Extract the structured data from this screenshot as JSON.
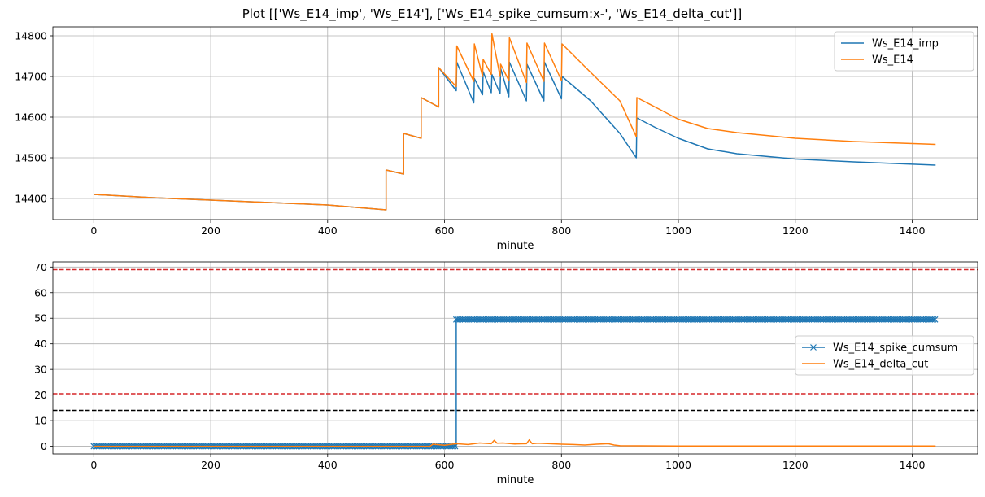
{
  "title": "Plot [['Ws_E14_imp', 'Ws_E14'], ['Ws_E14_spike_cumsum:x-', 'Ws_E14_delta_cut']]",
  "chart_data": [
    {
      "type": "line",
      "xlabel": "minute",
      "ylabel": "",
      "xlim": [
        -70,
        1512
      ],
      "ylim": [
        14348,
        14822
      ],
      "xticks": [
        0,
        200,
        400,
        600,
        800,
        1000,
        1200,
        1400
      ],
      "yticks": [
        14400,
        14500,
        14600,
        14700,
        14800
      ],
      "grid": true,
      "legend": "top-right",
      "series": [
        {
          "name": "Ws_E14_imp",
          "color": "#1f77b4",
          "x": [
            0,
            100,
            200,
            300,
            400,
            500,
            500,
            530,
            530,
            560,
            560,
            590,
            590,
            620,
            621,
            650,
            651,
            665,
            666,
            680,
            681,
            695,
            696,
            710,
            711,
            740,
            741,
            770,
            771,
            800,
            801,
            850,
            900,
            928,
            929,
            960,
            1000,
            1050,
            1100,
            1200,
            1300,
            1440
          ],
          "y": [
            14410,
            14402,
            14396,
            14390,
            14384,
            14372,
            14470,
            14460,
            14560,
            14548,
            14648,
            14625,
            14722,
            14665,
            14735,
            14635,
            14695,
            14655,
            14712,
            14660,
            14705,
            14658,
            14720,
            14650,
            14735,
            14640,
            14730,
            14640,
            14735,
            14645,
            14700,
            14640,
            14560,
            14500,
            14598,
            14575,
            14548,
            14522,
            14510,
            14497,
            14490,
            14482
          ]
        },
        {
          "name": "Ws_E14",
          "color": "#ff7f0e",
          "x": [
            0,
            100,
            200,
            300,
            400,
            500,
            500,
            530,
            530,
            560,
            560,
            590,
            590,
            620,
            621,
            650,
            651,
            665,
            666,
            680,
            681,
            695,
            696,
            710,
            711,
            740,
            741,
            770,
            771,
            800,
            801,
            850,
            900,
            928,
            929,
            960,
            1000,
            1050,
            1100,
            1200,
            1300,
            1440
          ],
          "y": [
            14410,
            14402,
            14396,
            14390,
            14384,
            14372,
            14470,
            14460,
            14560,
            14548,
            14648,
            14625,
            14722,
            14675,
            14775,
            14688,
            14780,
            14700,
            14742,
            14705,
            14805,
            14700,
            14730,
            14690,
            14795,
            14685,
            14782,
            14688,
            14782,
            14690,
            14780,
            14710,
            14640,
            14552,
            14648,
            14625,
            14595,
            14572,
            14562,
            14548,
            14540,
            14533
          ]
        }
      ]
    },
    {
      "type": "line",
      "xlabel": "minute",
      "ylabel": "",
      "xlim": [
        -70,
        1512
      ],
      "ylim": [
        -3,
        72
      ],
      "xticks": [
        0,
        200,
        400,
        600,
        800,
        1000,
        1200,
        1400
      ],
      "yticks": [
        0,
        10,
        20,
        30,
        40,
        50,
        60,
        70
      ],
      "grid": true,
      "legend": "center-right",
      "hlines": [
        {
          "y": 69,
          "color": "#d62728",
          "style": "dashed"
        },
        {
          "y": 20.5,
          "color": "#d62728",
          "style": "dashed"
        },
        {
          "y": 14,
          "color": "#000000",
          "style": "dashed"
        }
      ],
      "series": [
        {
          "name": "Ws_E14_spike_cumsum",
          "color": "#1f77b4",
          "marker": "x",
          "x": [
            0,
            620,
            620,
            1440
          ],
          "y": [
            0,
            0,
            49.5,
            49.5
          ]
        },
        {
          "name": "Ws_E14_delta_cut",
          "color": "#ff7f0e",
          "x": [
            0,
            575,
            580,
            600,
            620,
            640,
            660,
            680,
            685,
            690,
            700,
            720,
            740,
            745,
            750,
            760,
            780,
            800,
            820,
            840,
            860,
            880,
            890,
            900,
            1000,
            1200,
            1440
          ],
          "y": [
            0,
            0,
            0.8,
            0.4,
            1.0,
            0.7,
            1.3,
            1.0,
            2.3,
            1.2,
            1.3,
            0.9,
            1.0,
            2.5,
            1.0,
            1.2,
            1.0,
            0.8,
            0.7,
            0.5,
            0.8,
            1.0,
            0.5,
            0.2,
            0.1,
            0.1,
            0.1
          ]
        }
      ]
    }
  ]
}
